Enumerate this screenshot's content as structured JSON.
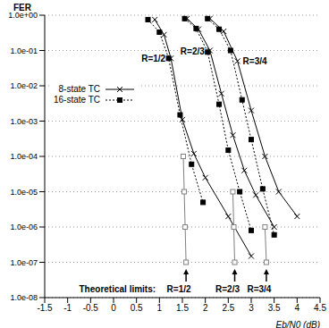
{
  "chart_data": {
    "type": "line",
    "xlabel": "Eb/N0 (dB)",
    "ylabel": "FER",
    "xlim": [
      -1.5,
      4.5
    ],
    "xticks": [
      -1.5,
      -1,
      -0.5,
      0,
      0.5,
      1,
      1.5,
      2,
      2.5,
      3,
      3.5,
      4,
      4.5
    ],
    "ylim": [
      1e-08,
      1
    ],
    "yticks": [
      {
        "value": 1,
        "label": "1.0e+00"
      },
      {
        "value": 0.1,
        "label": "1.0e-01"
      },
      {
        "value": 0.01,
        "label": "1.0e-02"
      },
      {
        "value": 0.001,
        "label": "1.0e-03"
      },
      {
        "value": 0.0001,
        "label": "1.0e-04"
      },
      {
        "value": 1e-05,
        "label": "1.0e-05"
      },
      {
        "value": 1e-06,
        "label": "1.0e-06"
      },
      {
        "value": 1e-07,
        "label": "1.0e-07"
      },
      {
        "value": 1e-08,
        "label": "1.0e-08"
      }
    ],
    "log": "y",
    "grid": true,
    "legend": "upper left",
    "series": [
      {
        "name": "8-state TC",
        "rate": "R=1/2",
        "color": "#000000",
        "marker": "x",
        "line_style": "solid",
        "x": [
          0.9,
          1.1,
          1.25,
          1.5,
          1.75,
          2.0,
          2.5,
          3.0
        ],
        "values": [
          0.75,
          0.28,
          0.06,
          0.0011,
          0.00012,
          2.5e-05,
          2e-06,
          1.5e-07
        ]
      },
      {
        "name": "16-state TC",
        "rate": "R=1/2",
        "color": "#000000",
        "marker": "square",
        "line_style": "dotted",
        "x": [
          0.75,
          1.0,
          1.2,
          1.45,
          1.7,
          1.95
        ],
        "values": [
          0.75,
          0.33,
          0.06,
          0.0015,
          6e-05,
          5e-06
        ]
      },
      {
        "name": "8-state TC",
        "rate": "R=2/3",
        "color": "#000000",
        "marker": "x",
        "line_style": "solid",
        "x": [
          1.6,
          1.85,
          2.1,
          2.35,
          2.6,
          2.85,
          3.1,
          3.5
        ],
        "values": [
          0.8,
          0.4,
          0.1,
          0.006,
          0.0004,
          4e-05,
          8e-06,
          1e-06
        ]
      },
      {
        "name": "16-state TC",
        "rate": "R=2/3",
        "color": "#000000",
        "marker": "square",
        "line_style": "dotted",
        "x": [
          1.55,
          1.8,
          2.05,
          2.3,
          2.5,
          2.75,
          3.0
        ],
        "values": [
          0.8,
          0.42,
          0.09,
          0.003,
          0.00015,
          1e-05,
          8e-07
        ]
      },
      {
        "name": "8-state TC",
        "rate": "R=3/4",
        "color": "#000000",
        "marker": "x",
        "line_style": "solid",
        "x": [
          2.1,
          2.4,
          2.7,
          3.0,
          3.3,
          3.6,
          4.0
        ],
        "values": [
          0.8,
          0.35,
          0.05,
          0.002,
          0.0001,
          1e-05,
          2e-06
        ]
      },
      {
        "name": "16-state TC",
        "rate": "R=3/4",
        "color": "#000000",
        "marker": "square",
        "line_style": "dotted",
        "x": [
          2.05,
          2.3,
          2.55,
          2.8,
          3.0,
          3.25,
          3.5
        ],
        "values": [
          0.8,
          0.4,
          0.1,
          0.004,
          0.0003,
          1.2e-05,
          6e-07
        ]
      }
    ],
    "limits": {
      "label": "Theoretical limits:",
      "color": "#808080",
      "marker": "open_square",
      "line_style": "solid",
      "series": [
        {
          "rate": "R=1/2",
          "x": [
            1.52,
            1.54,
            1.56,
            1.58
          ],
          "values": [
            0.0001,
            1e-05,
            1e-06,
            1e-07
          ]
        },
        {
          "rate": "R=2/3",
          "x": [
            2.6,
            2.62,
            2.64
          ],
          "values": [
            1e-05,
            1e-06,
            1e-07
          ]
        },
        {
          "rate": "R=3/4",
          "x": [
            3.3,
            3.33
          ],
          "values": [
            1e-06,
            1e-07
          ]
        }
      ]
    }
  }
}
